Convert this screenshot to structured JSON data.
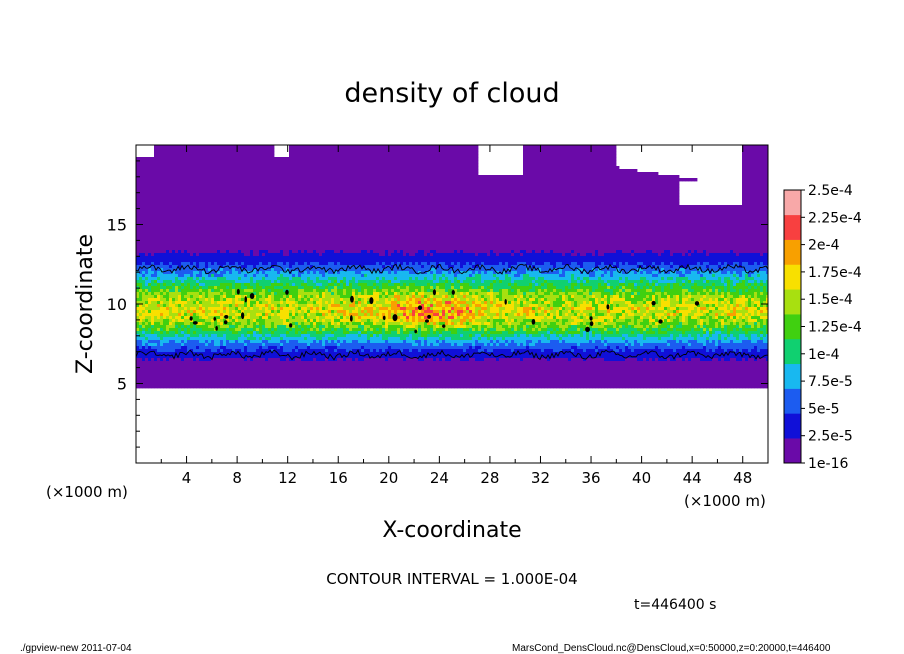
{
  "chart_data": {
    "type": "heatmap",
    "title": "density of cloud",
    "xlabel": "X-coordinate",
    "ylabel": "Z-coordinate",
    "x_unit": "(×1000 m)",
    "y_unit": "(×1000 m)",
    "xlim": [
      0,
      50
    ],
    "ylim": [
      0,
      20
    ],
    "x_ticks": [
      "4",
      "8",
      "12",
      "16",
      "20",
      "24",
      "28",
      "32",
      "36",
      "40",
      "44",
      "48"
    ],
    "y_ticks": [
      "5",
      "10",
      "15"
    ],
    "contour_interval_label": "CONTOUR INTERVAL = 1.000E-04",
    "time_label": "t=446400 s",
    "cloud_layer": {
      "bottom_km": 4.7,
      "core_low_km": 6.8,
      "core_high_km": 12.2,
      "peak_km": 9.6,
      "peak_value": 0.000175,
      "max_value": 0.00021
    },
    "colorbar": {
      "labels": [
        "2.5e-4",
        "2.25e-4",
        "2e-4",
        "1.75e-4",
        "1.5e-4",
        "1.25e-4",
        "1e-4",
        "7.5e-5",
        "5e-5",
        "2.5e-5",
        "1e-16"
      ],
      "levels": [
        1e-16,
        2.5e-05,
        5e-05,
        7.5e-05,
        0.0001,
        0.000125,
        0.00015,
        0.000175,
        0.0002,
        0.000225,
        0.00025
      ],
      "colors": [
        "#6a0aa8",
        "#1010d8",
        "#1c5cf0",
        "#18b8f0",
        "#10d070",
        "#40d010",
        "#a8e010",
        "#f8e000",
        "#f8a000",
        "#f84040",
        "#f8a8a8"
      ]
    }
  },
  "footer": {
    "left": "./gpview-new   2011-07-04",
    "right": "MarsCond_DensCloud.nc@DensCloud,x=0:50000,z=0:20000,t=446400"
  }
}
